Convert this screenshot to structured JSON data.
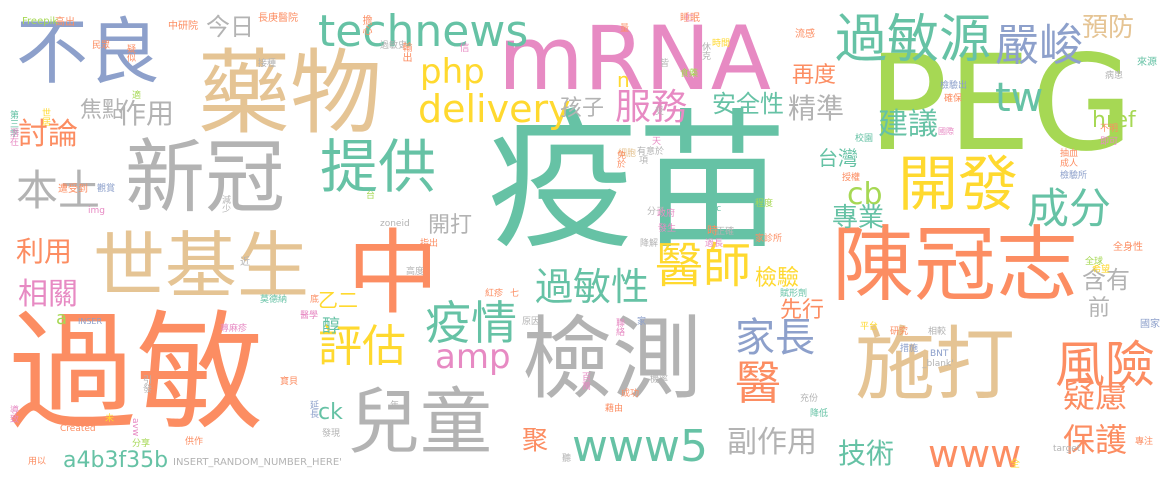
{
  "palette": {
    "green": "#66c2a5",
    "orange": "#fc8d62",
    "blue": "#8da0cb",
    "pink": "#e78ac3",
    "lime": "#a6d854",
    "yellow": "#ffd92f",
    "tan": "#e5c494",
    "gray": "#b3b3b3"
  },
  "words": [
    {
      "text": "疫苗",
      "color": "green"
    },
    {
      "text": "過敏",
      "color": "orange"
    },
    {
      "text": "PEG",
      "color": "lime"
    },
    {
      "text": "藥物",
      "color": "tan"
    },
    {
      "text": "mRNA",
      "color": "pink"
    },
    {
      "text": "檢測",
      "color": "gray"
    },
    {
      "text": "陳冠志",
      "color": "orange"
    },
    {
      "text": "中",
      "color": "orange"
    },
    {
      "text": "新冠",
      "color": "gray"
    },
    {
      "text": "施打",
      "color": "tan"
    },
    {
      "text": "世基生",
      "color": "tan"
    },
    {
      "text": "兒童",
      "color": "gray"
    },
    {
      "text": "不良",
      "color": "blue"
    },
    {
      "text": "開發",
      "color": "yellow"
    },
    {
      "text": "提供",
      "color": "green"
    },
    {
      "text": "過敏源",
      "color": "green"
    },
    {
      "text": "嚴峻",
      "color": "blue"
    },
    {
      "text": "醫師",
      "color": "yellow"
    },
    {
      "text": "風險",
      "color": "orange"
    },
    {
      "text": "www5",
      "color": "green"
    },
    {
      "text": "technews",
      "color": "green"
    },
    {
      "text": "疫情",
      "color": "green"
    },
    {
      "text": "評估",
      "color": "yellow"
    },
    {
      "text": "delivery",
      "color": "yellow"
    },
    {
      "text": "本土",
      "color": "gray"
    },
    {
      "text": "成分",
      "color": "green"
    },
    {
      "text": "家長",
      "color": "blue"
    },
    {
      "text": "過敏性",
      "color": "green"
    },
    {
      "text": "醫",
      "color": "orange"
    },
    {
      "text": "服務",
      "color": "pink"
    },
    {
      "text": "tw",
      "color": "green"
    },
    {
      "text": "amp",
      "color": "pink"
    },
    {
      "text": "php",
      "color": "yellow"
    },
    {
      "text": "www",
      "color": "orange"
    },
    {
      "text": "保護",
      "color": "orange"
    },
    {
      "text": "疑慮",
      "color": "orange"
    },
    {
      "text": "建議",
      "color": "green"
    },
    {
      "text": "討論",
      "color": "orange"
    },
    {
      "text": "相關",
      "color": "pink"
    },
    {
      "text": "cb",
      "color": "lime"
    },
    {
      "text": "預防",
      "color": "tan"
    },
    {
      "text": "副作用",
      "color": "gray"
    },
    {
      "text": "精準",
      "color": "gray"
    },
    {
      "text": "作用",
      "color": "gray"
    },
    {
      "text": "技術",
      "color": "green"
    },
    {
      "text": "利用",
      "color": "orange"
    },
    {
      "text": "專業",
      "color": "green"
    },
    {
      "text": "a4b3f35b",
      "color": "green"
    },
    {
      "text": "安全性",
      "color": "green"
    },
    {
      "text": "今日",
      "color": "gray"
    },
    {
      "text": "焦點",
      "color": "gray"
    },
    {
      "text": "含有",
      "color": "gray"
    },
    {
      "text": "檢驗",
      "color": "yellow"
    },
    {
      "text": "開打",
      "color": "gray"
    },
    {
      "text": "孩子",
      "color": "gray"
    },
    {
      "text": "再度",
      "color": "orange"
    },
    {
      "text": "台灣",
      "color": "green"
    },
    {
      "text": "href",
      "color": "lime"
    },
    {
      "text": "先行",
      "color": "orange"
    },
    {
      "text": "前",
      "color": "gray"
    },
    {
      "text": "ck",
      "color": "green"
    },
    {
      "text": "聚",
      "color": "orange"
    },
    {
      "text": "醇",
      "color": "green"
    },
    {
      "text": "乙二",
      "color": "yellow"
    },
    {
      "text": "n",
      "color": "yellow"
    },
    {
      "text": "a",
      "color": "lime"
    },
    {
      "text": "INSERT_RANDOM_NUMBER_HERE'",
      "color": "gray"
    },
    {
      "text": "長庚醫院",
      "color": "orange"
    },
    {
      "text": "中研院",
      "color": "orange"
    },
    {
      "text": "睡眠",
      "color": "orange"
    },
    {
      "text": "擔心",
      "color": "orange"
    },
    {
      "text": "過敏史",
      "color": "gray"
    },
    {
      "text": "輸出",
      "color": "orange"
    },
    {
      "text": "信",
      "color": "pink"
    },
    {
      "text": "高出",
      "color": "orange"
    },
    {
      "text": "Freepik",
      "color": "lime"
    },
    {
      "text": "民眾",
      "color": "orange"
    },
    {
      "text": "疑似",
      "color": "orange"
    },
    {
      "text": "接種",
      "color": "gray"
    },
    {
      "text": "時間",
      "color": "yellow"
    },
    {
      "text": "流感",
      "color": "orange"
    },
    {
      "text": "來源",
      "color": "green"
    },
    {
      "text": "病患",
      "color": "gray"
    },
    {
      "text": "檢驗出",
      "color": "blue"
    },
    {
      "text": "確保",
      "color": "orange"
    },
    {
      "text": "國際",
      "color": "pink"
    },
    {
      "text": "不明",
      "color": "orange"
    },
    {
      "text": "即可",
      "color": "pink"
    },
    {
      "text": "校園",
      "color": "green"
    },
    {
      "text": "抽血",
      "color": "orange"
    },
    {
      "text": "成人",
      "color": "orange"
    },
    {
      "text": "檢驗所",
      "color": "blue"
    },
    {
      "text": "全身性",
      "color": "orange"
    },
    {
      "text": "希望",
      "color": "yellow"
    },
    {
      "text": "全球",
      "color": "lime"
    },
    {
      "text": "研究",
      "color": "orange"
    },
    {
      "text": "平台",
      "color": "yellow"
    },
    {
      "text": "相較",
      "color": "gray"
    },
    {
      "text": "措施",
      "color": "blue"
    },
    {
      "text": "_blank'",
      "color": "gray"
    },
    {
      "text": "BNT",
      "color": "blue"
    },
    {
      "text": "國家",
      "color": "blue"
    },
    {
      "text": "專注",
      "color": "orange"
    },
    {
      "text": "target",
      "color": "gray"
    },
    {
      "text": "全",
      "color": "yellow"
    },
    {
      "text": "休克",
      "color": "gray"
    },
    {
      "text": "受",
      "color": "gray"
    },
    {
      "text": "天",
      "color": "pink"
    },
    {
      "text": "有意於",
      "color": "gray"
    },
    {
      "text": "細胞",
      "color": "tan"
    },
    {
      "text": "政府",
      "color": "pink"
    },
    {
      "text": "程度",
      "color": "lime"
    },
    {
      "text": "授權",
      "color": "orange"
    },
    {
      "text": "src",
      "color": "green"
    },
    {
      "text": "分子",
      "color": "gray"
    },
    {
      "text": "發生",
      "color": "pink"
    },
    {
      "text": "時",
      "color": "orange"
    },
    {
      "text": "正確",
      "color": "gray"
    },
    {
      "text": "家診所",
      "color": "orange"
    },
    {
      "text": "降解",
      "color": "gray"
    },
    {
      "text": "過長",
      "color": "pink"
    },
    {
      "text": "賦形劑",
      "color": "green"
    },
    {
      "text": "免於",
      "color": "orange"
    },
    {
      "text": "項",
      "color": "gray"
    },
    {
      "text": "第三季",
      "color": "green"
    },
    {
      "text": "潛在",
      "color": "pink"
    },
    {
      "text": "世居",
      "color": "yellow"
    },
    {
      "text": "適",
      "color": "lime"
    },
    {
      "text": "遭受到",
      "color": "orange"
    },
    {
      "text": "觀賞",
      "color": "blue"
    },
    {
      "text": "img",
      "color": "pink"
    },
    {
      "text": "減少",
      "color": "gray"
    },
    {
      "text": "莫德納",
      "color": "green"
    },
    {
      "text": "底",
      "color": "orange"
    },
    {
      "text": "zoneid",
      "color": "gray"
    },
    {
      "text": "指出",
      "color": "orange"
    },
    {
      "text": "高度",
      "color": "gray"
    },
    {
      "text": "紅疹",
      "color": "orange"
    },
    {
      "text": "七",
      "color": "orange"
    },
    {
      "text": "近",
      "color": "gray"
    },
    {
      "text": "蕁麻疹",
      "color": "pink"
    },
    {
      "text": "醫學",
      "color": "pink"
    },
    {
      "text": "INSER",
      "color": "blue"
    },
    {
      "text": "原因",
      "color": "gray"
    },
    {
      "text": "家",
      "color": "blue"
    },
    {
      "text": "聯絡",
      "color": "pink"
    },
    {
      "text": "百萬",
      "color": "pink"
    },
    {
      "text": "機率",
      "color": "gray"
    },
    {
      "text": "成功",
      "color": "orange"
    },
    {
      "text": "引發",
      "color": "gray"
    },
    {
      "text": "導致",
      "color": "pink"
    },
    {
      "text": "未",
      "color": "yellow"
    },
    {
      "text": "avw",
      "color": "pink"
    },
    {
      "text": "Created",
      "color": "orange"
    },
    {
      "text": "分享",
      "color": "lime"
    },
    {
      "text": "供作",
      "color": "orange"
    },
    {
      "text": "延長",
      "color": "blue"
    },
    {
      "text": "發現",
      "color": "gray"
    },
    {
      "text": "用以",
      "color": "orange"
    },
    {
      "text": "年",
      "color": "gray"
    },
    {
      "text": "寶貝",
      "color": "orange"
    },
    {
      "text": "藉由",
      "color": "orange"
    },
    {
      "text": "充份",
      "color": "gray"
    },
    {
      "text": "降低",
      "color": "green"
    },
    {
      "text": "聽",
      "color": "gray"
    },
    {
      "text": "食藥",
      "color": "lime"
    },
    {
      "text": "仁",
      "color": "pink"
    },
    {
      "text": "量",
      "color": "orange"
    },
    {
      "text": "皆",
      "color": "gray"
    },
    {
      "text": "台",
      "color": "lime"
    }
  ]
}
